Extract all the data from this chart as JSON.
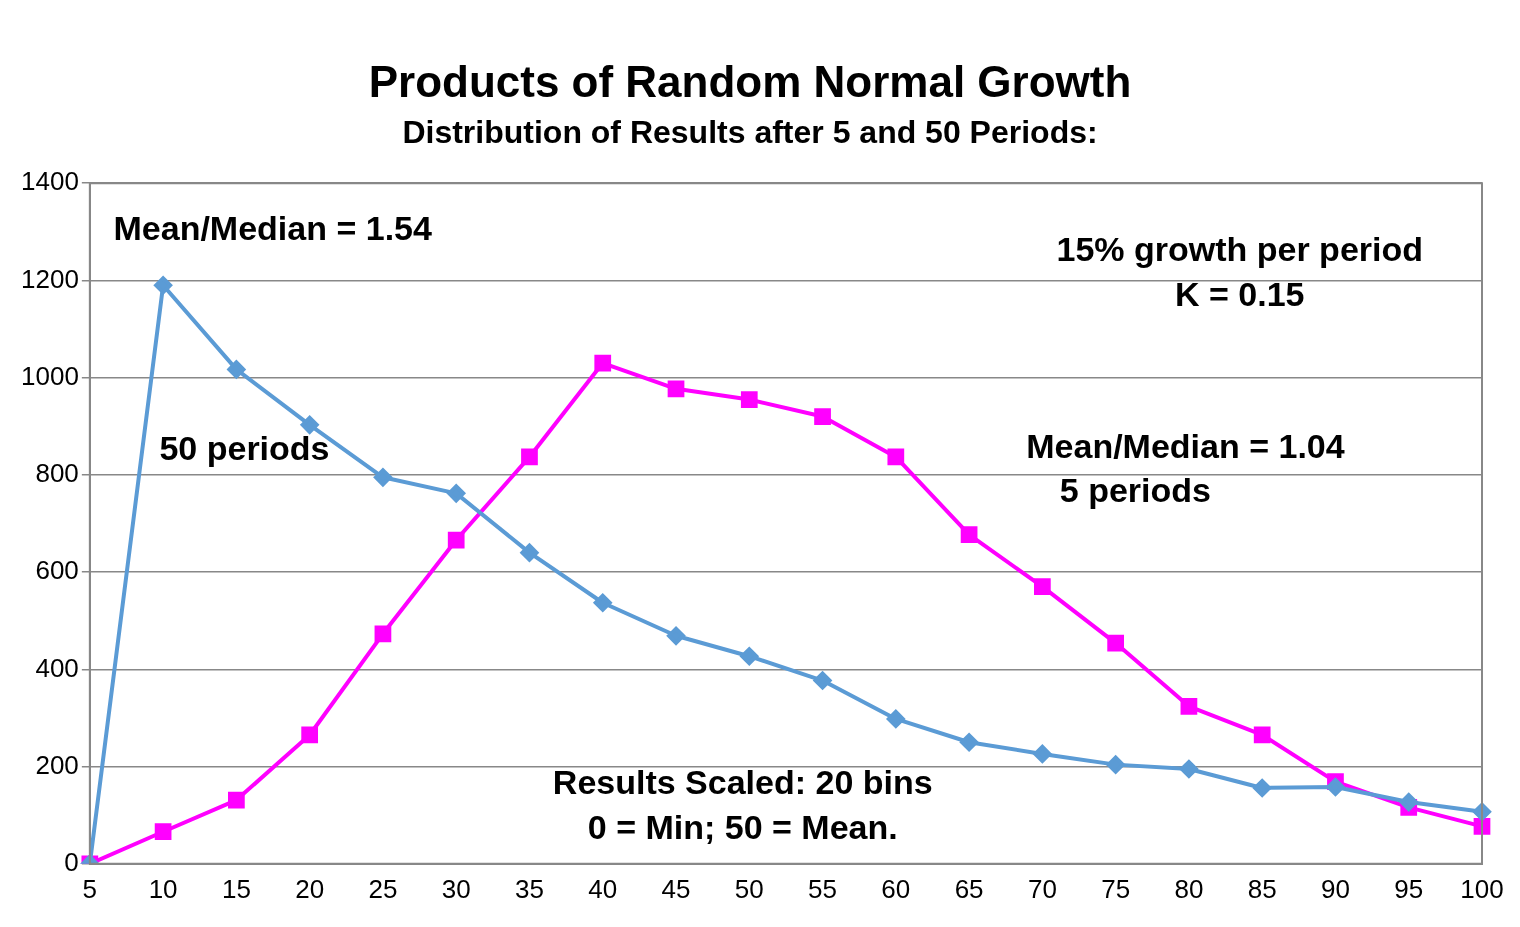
{
  "chart_data": {
    "type": "line",
    "title": "Products of Random Normal Growth",
    "subtitle": "Distribution of Results after 5 and 50 Periods:",
    "categories": [
      "5",
      "10",
      "15",
      "20",
      "25",
      "30",
      "35",
      "40",
      "45",
      "50",
      "55",
      "60",
      "65",
      "70",
      "75",
      "80",
      "85",
      "90",
      "95",
      "100"
    ],
    "series": [
      {
        "name": "50 periods",
        "color": "#5b9bd5",
        "marker": "diamond",
        "values": [
          0,
          1190,
          1017,
          903,
          795,
          762,
          640,
          537,
          469,
          427,
          377,
          298,
          250,
          226,
          204,
          195,
          156,
          158,
          127,
          107
        ]
      },
      {
        "name": "5 periods",
        "color": "#ff00ff",
        "marker": "square",
        "values": [
          0,
          66,
          131,
          265,
          473,
          666,
          837,
          1030,
          977,
          955,
          920,
          837,
          677,
          570,
          454,
          324,
          265,
          169,
          116,
          77
        ]
      }
    ],
    "ylim": [
      0,
      1400
    ],
    "yticks": [
      0,
      200,
      400,
      600,
      800,
      1000,
      1200,
      1400
    ],
    "grid": "y",
    "legend": false,
    "line_style": "solid",
    "annotations": [
      "Mean/Median = 1.54",
      "15% growth per period",
      "K = 0.15",
      "Mean/Median = 1.04",
      "Results Scaled: 20 bins",
      "0 = Min; 50 = Mean."
    ]
  }
}
